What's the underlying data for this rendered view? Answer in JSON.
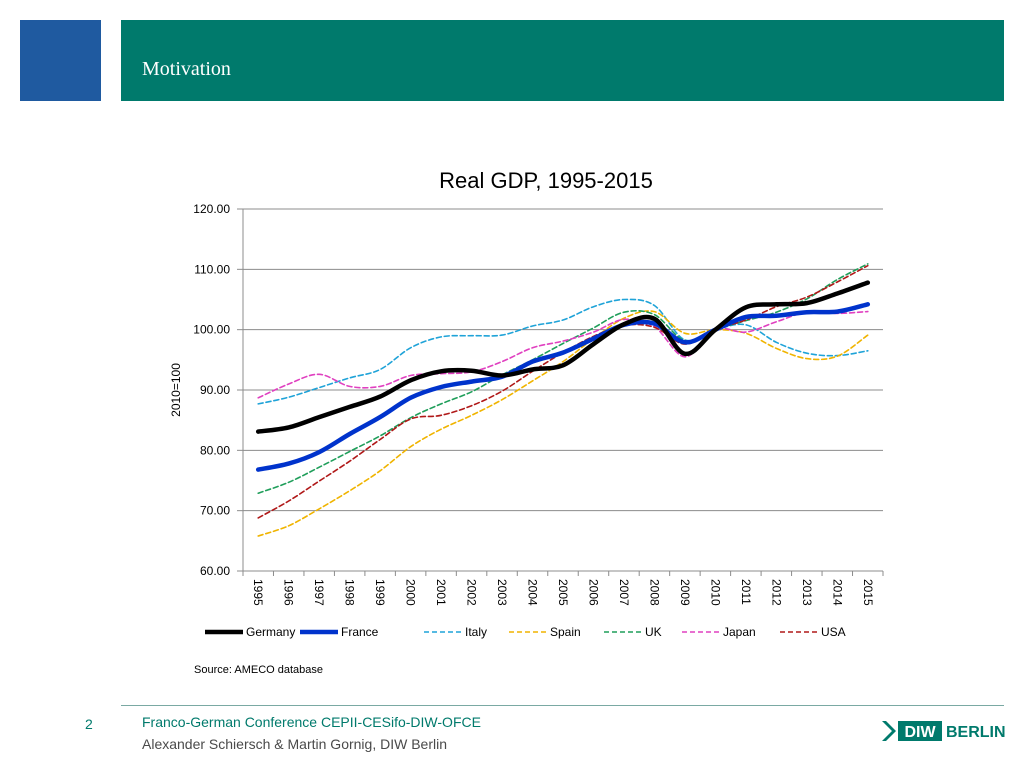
{
  "header": {
    "title": "Motivation"
  },
  "footer": {
    "page_number": "2",
    "line1": "Franco-German Conference CEPII-CESifo-DIW-OFCE",
    "line2": "Alexander Schiersch & Martin Gornig, DIW Berlin",
    "logo_mark": "DIW",
    "logo_text": "BERLIN"
  },
  "source": "Source:  AMECO database",
  "colors": {
    "header": "#007a6c",
    "square": "#1f5aa0"
  },
  "chart_data": {
    "type": "line",
    "title": "Real GDP, 1995-2015",
    "xlabel": "",
    "ylabel": "2010=100",
    "ylim": [
      60,
      120
    ],
    "yticks": [
      60,
      70,
      80,
      90,
      100,
      110,
      120
    ],
    "ytick_labels": [
      "60.00",
      "70.00",
      "80.00",
      "90.00",
      "100.00",
      "110.00",
      "120.00"
    ],
    "grid": true,
    "legend": "bottom",
    "categories": [
      "1995",
      "1996",
      "1997",
      "1998",
      "1999",
      "2000",
      "2001",
      "2002",
      "2003",
      "2004",
      "2005",
      "2006",
      "2007",
      "2008",
      "2009",
      "2010",
      "2011",
      "2012",
      "2013",
      "2014",
      "2015"
    ],
    "series": [
      {
        "name": "Germany",
        "color": "#000000",
        "style": "solid-thick",
        "values": [
          83.1,
          83.8,
          85.5,
          87.2,
          88.9,
          91.6,
          93.1,
          93.2,
          92.4,
          93.4,
          94.1,
          97.6,
          100.9,
          101.8,
          96.0,
          100.0,
          103.7,
          104.2,
          104.4,
          106.0,
          107.8
        ]
      },
      {
        "name": "France",
        "color": "#0033cc",
        "style": "solid-thick",
        "values": [
          76.8,
          77.8,
          79.7,
          82.7,
          85.5,
          88.7,
          90.5,
          91.4,
          92.2,
          94.7,
          96.2,
          98.5,
          100.8,
          101.0,
          97.9,
          100.0,
          102.1,
          102.3,
          102.9,
          103.0,
          104.2
        ]
      },
      {
        "name": "Italy",
        "color": "#1fa3d8",
        "style": "dashed",
        "values": [
          87.7,
          88.8,
          90.4,
          92.0,
          93.4,
          97.0,
          98.8,
          99.0,
          99.1,
          100.6,
          101.6,
          103.8,
          105.0,
          104.0,
          98.3,
          100.0,
          100.8,
          97.9,
          96.1,
          95.7,
          96.5
        ]
      },
      {
        "name": "Spain",
        "color": "#f0b400",
        "style": "dashed",
        "values": [
          65.8,
          67.5,
          70.3,
          73.3,
          76.6,
          80.6,
          83.5,
          85.8,
          88.4,
          91.5,
          94.7,
          98.5,
          101.9,
          103.0,
          99.4,
          100.0,
          99.4,
          96.9,
          95.2,
          95.6,
          99.1
        ]
      },
      {
        "name": "UK",
        "color": "#1f9e5a",
        "style": "dashed",
        "values": [
          72.9,
          74.7,
          77.2,
          79.8,
          82.4,
          85.4,
          87.7,
          89.7,
          92.5,
          95.0,
          97.7,
          100.3,
          102.9,
          102.5,
          98.2,
          100.0,
          101.5,
          102.9,
          105.1,
          108.3,
          110.9
        ]
      },
      {
        "name": "Japan",
        "color": "#e040c0",
        "style": "dashed",
        "values": [
          88.7,
          91.0,
          92.6,
          90.6,
          90.6,
          92.4,
          92.7,
          93.0,
          94.7,
          97.0,
          98.1,
          99.6,
          101.7,
          100.5,
          95.5,
          100.0,
          99.6,
          101.3,
          102.9,
          102.7,
          103.0
        ]
      },
      {
        "name": "USA",
        "color": "#b01818",
        "style": "dashed",
        "values": [
          68.8,
          71.6,
          74.9,
          78.2,
          81.8,
          85.2,
          85.8,
          87.4,
          89.8,
          93.1,
          96.2,
          98.9,
          100.7,
          100.4,
          97.6,
          100.0,
          101.6,
          103.8,
          105.4,
          107.9,
          110.6
        ]
      }
    ]
  }
}
